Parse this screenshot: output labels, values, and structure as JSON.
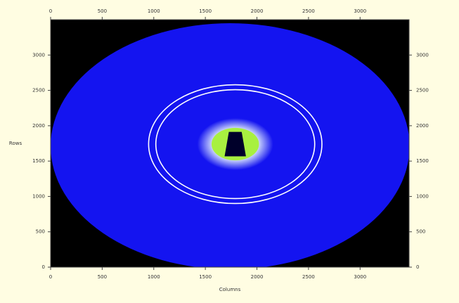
{
  "chart_data": {
    "type": "image",
    "xlabel": "Columns",
    "ylabel": "Rows",
    "xlim": [
      0,
      3475
    ],
    "ylim": [
      0,
      3500
    ],
    "xticks": [
      0,
      500,
      1000,
      1500,
      2000,
      2500,
      3000
    ],
    "yticks": [
      0,
      500,
      1000,
      1500,
      2000,
      2500,
      3000
    ],
    "background": "#000000",
    "detector": {
      "center_x": 1740,
      "center_y": 1710,
      "radius": 1740,
      "color": "#1414f0"
    },
    "beam": {
      "center_x": 1790,
      "center_y": 1740,
      "radius": 230,
      "color": "#a8f040",
      "stop_color": "#00002a"
    },
    "rings": {
      "radii": [
        770,
        840
      ],
      "color": "#ffffff"
    }
  }
}
